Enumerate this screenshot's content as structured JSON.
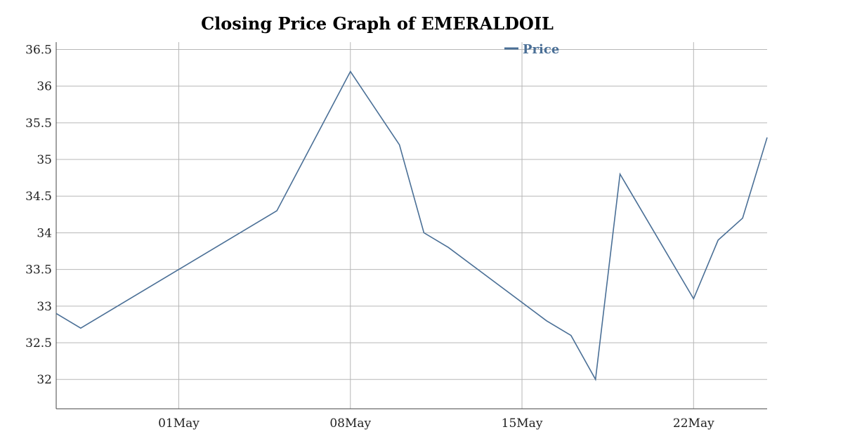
{
  "chart_data": {
    "type": "line",
    "title": "Closing Price Graph of EMERALDOIL",
    "xlabel": "",
    "ylabel": "",
    "legend_position": "top-right",
    "grid": true,
    "series_color": "#4a6f96",
    "ylim": [
      31.6,
      36.6
    ],
    "xlim": [
      "2017-04-26",
      "2017-05-25"
    ],
    "y_ticks": [
      32,
      32.5,
      33,
      33.5,
      34,
      34.5,
      35,
      35.5,
      36,
      36.5
    ],
    "y_tick_labels": [
      "32",
      "32.5",
      "33",
      "33.5",
      "34",
      "34.5",
      "35",
      "35.5",
      "36",
      "36.5"
    ],
    "x_ticks": [
      "2017-05-01",
      "2017-05-08",
      "2017-05-15",
      "2017-05-22"
    ],
    "x_tick_labels": [
      "01May",
      "08May",
      "15May",
      "22May"
    ],
    "series": [
      {
        "name": "Price",
        "x": [
          "2017-04-26",
          "2017-04-27",
          "2017-05-05",
          "2017-05-08",
          "2017-05-10",
          "2017-05-11",
          "2017-05-12",
          "2017-05-16",
          "2017-05-17",
          "2017-05-18",
          "2017-05-19",
          "2017-05-22",
          "2017-05-23",
          "2017-05-24",
          "2017-05-25"
        ],
        "y": [
          32.9,
          32.7,
          34.3,
          36.2,
          35.2,
          34.0,
          33.8,
          32.8,
          32.6,
          32.0,
          34.8,
          33.1,
          33.9,
          34.2,
          35.3
        ]
      }
    ]
  }
}
